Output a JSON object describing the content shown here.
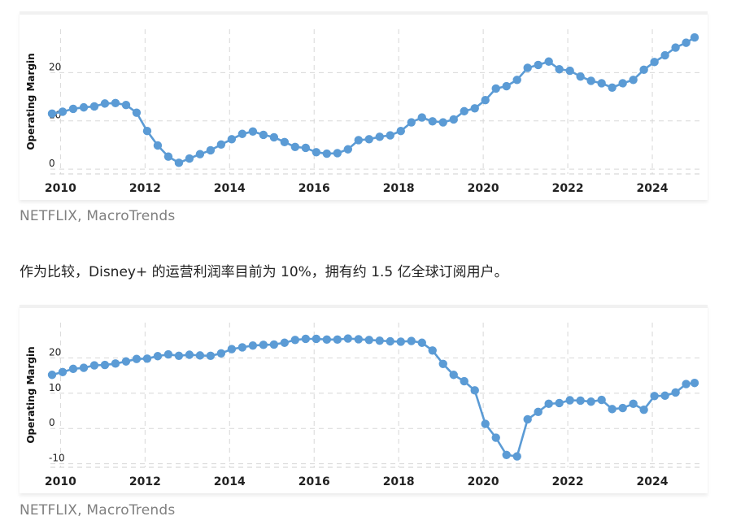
{
  "caption_top": "NETFLIX, MacroTrends",
  "paragraph": "作为比较，Disney+ 的运营利润率目前为 10%，拥有约 1.5 亿全球订阅用户。",
  "caption_bottom": "NETFLIX, MacroTrends",
  "chart_data": [
    {
      "type": "line",
      "ylabel": "Operating Margin",
      "yticks": [
        0,
        10,
        20
      ],
      "ylim": [
        -1,
        29
      ],
      "xlim": [
        2009.8,
        2025.0
      ],
      "xticks": [
        2010,
        2012,
        2014,
        2016,
        2018,
        2020,
        2022,
        2024
      ],
      "grid": true,
      "color": "#5b9bd5",
      "x": [
        2009.8,
        2010.05,
        2010.3,
        2010.55,
        2010.8,
        2011.05,
        2011.3,
        2011.55,
        2011.8,
        2012.05,
        2012.3,
        2012.55,
        2012.8,
        2013.05,
        2013.3,
        2013.55,
        2013.8,
        2014.05,
        2014.3,
        2014.55,
        2014.8,
        2015.05,
        2015.3,
        2015.55,
        2015.8,
        2016.05,
        2016.3,
        2016.55,
        2016.8,
        2017.05,
        2017.3,
        2017.55,
        2017.8,
        2018.05,
        2018.3,
        2018.55,
        2018.8,
        2019.05,
        2019.3,
        2019.55,
        2019.8,
        2020.05,
        2020.3,
        2020.55,
        2020.8,
        2021.05,
        2021.3,
        2021.55,
        2021.8,
        2022.05,
        2022.3,
        2022.55,
        2022.8,
        2023.05,
        2023.3,
        2023.55,
        2023.8,
        2024.05,
        2024.3,
        2024.55,
        2024.8,
        2025.0
      ],
      "y": [
        11.5,
        11.9,
        12.5,
        12.8,
        13.0,
        13.6,
        13.7,
        13.3,
        11.7,
        7.9,
        4.9,
        2.6,
        1.3,
        2.2,
        3.1,
        3.9,
        5.1,
        6.2,
        7.3,
        7.8,
        7.1,
        6.6,
        5.6,
        4.6,
        4.4,
        3.5,
        3.2,
        3.3,
        4.1,
        6.0,
        6.2,
        6.7,
        7.0,
        7.9,
        9.7,
        10.7,
        9.9,
        9.7,
        10.3,
        12.0,
        12.6,
        14.3,
        16.7,
        17.2,
        18.5,
        21.0,
        21.6,
        22.3,
        20.7,
        20.4,
        19.2,
        18.3,
        17.8,
        16.9,
        17.8,
        18.5,
        20.6,
        22.2,
        23.6,
        25.2,
        26.2,
        27.3
      ]
    },
    {
      "type": "line",
      "ylabel": "Operating Margin",
      "yticks": [
        -10,
        0,
        10,
        20
      ],
      "ylim": [
        -11,
        30
      ],
      "xlim": [
        2009.8,
        2025.0
      ],
      "xticks": [
        2010,
        2012,
        2014,
        2016,
        2018,
        2020,
        2022,
        2024
      ],
      "grid": true,
      "color": "#5b9bd5",
      "x": [
        2009.8,
        2010.05,
        2010.3,
        2010.55,
        2010.8,
        2011.05,
        2011.3,
        2011.55,
        2011.8,
        2012.05,
        2012.3,
        2012.55,
        2012.8,
        2013.05,
        2013.3,
        2013.55,
        2013.8,
        2014.05,
        2014.3,
        2014.55,
        2014.8,
        2015.05,
        2015.3,
        2015.55,
        2015.8,
        2016.05,
        2016.3,
        2016.55,
        2016.8,
        2017.05,
        2017.3,
        2017.55,
        2017.8,
        2018.05,
        2018.3,
        2018.55,
        2018.8,
        2019.05,
        2019.3,
        2019.55,
        2019.8,
        2020.05,
        2020.3,
        2020.55,
        2020.8,
        2021.05,
        2021.3,
        2021.55,
        2021.8,
        2022.05,
        2022.3,
        2022.55,
        2022.8,
        2023.05,
        2023.3,
        2023.55,
        2023.8,
        2024.05,
        2024.3,
        2024.55,
        2024.8,
        2025.0
      ],
      "y": [
        15.2,
        16.0,
        16.9,
        17.2,
        17.9,
        18.0,
        18.4,
        19.0,
        19.7,
        19.8,
        20.5,
        21.0,
        20.6,
        20.9,
        20.7,
        20.6,
        21.3,
        22.5,
        23.0,
        23.5,
        23.7,
        23.8,
        24.3,
        25.1,
        25.4,
        25.4,
        25.2,
        25.2,
        25.5,
        25.3,
        25.1,
        24.9,
        24.7,
        24.6,
        24.8,
        24.3,
        22.1,
        18.3,
        15.2,
        13.4,
        10.8,
        1.3,
        -2.6,
        -7.5,
        -7.9,
        2.6,
        4.7,
        7.0,
        7.2,
        8.0,
        7.9,
        7.6,
        8.1,
        5.5,
        5.8,
        7.0,
        5.3,
        9.2,
        9.3,
        10.2,
        12.6,
        12.9
      ]
    }
  ]
}
